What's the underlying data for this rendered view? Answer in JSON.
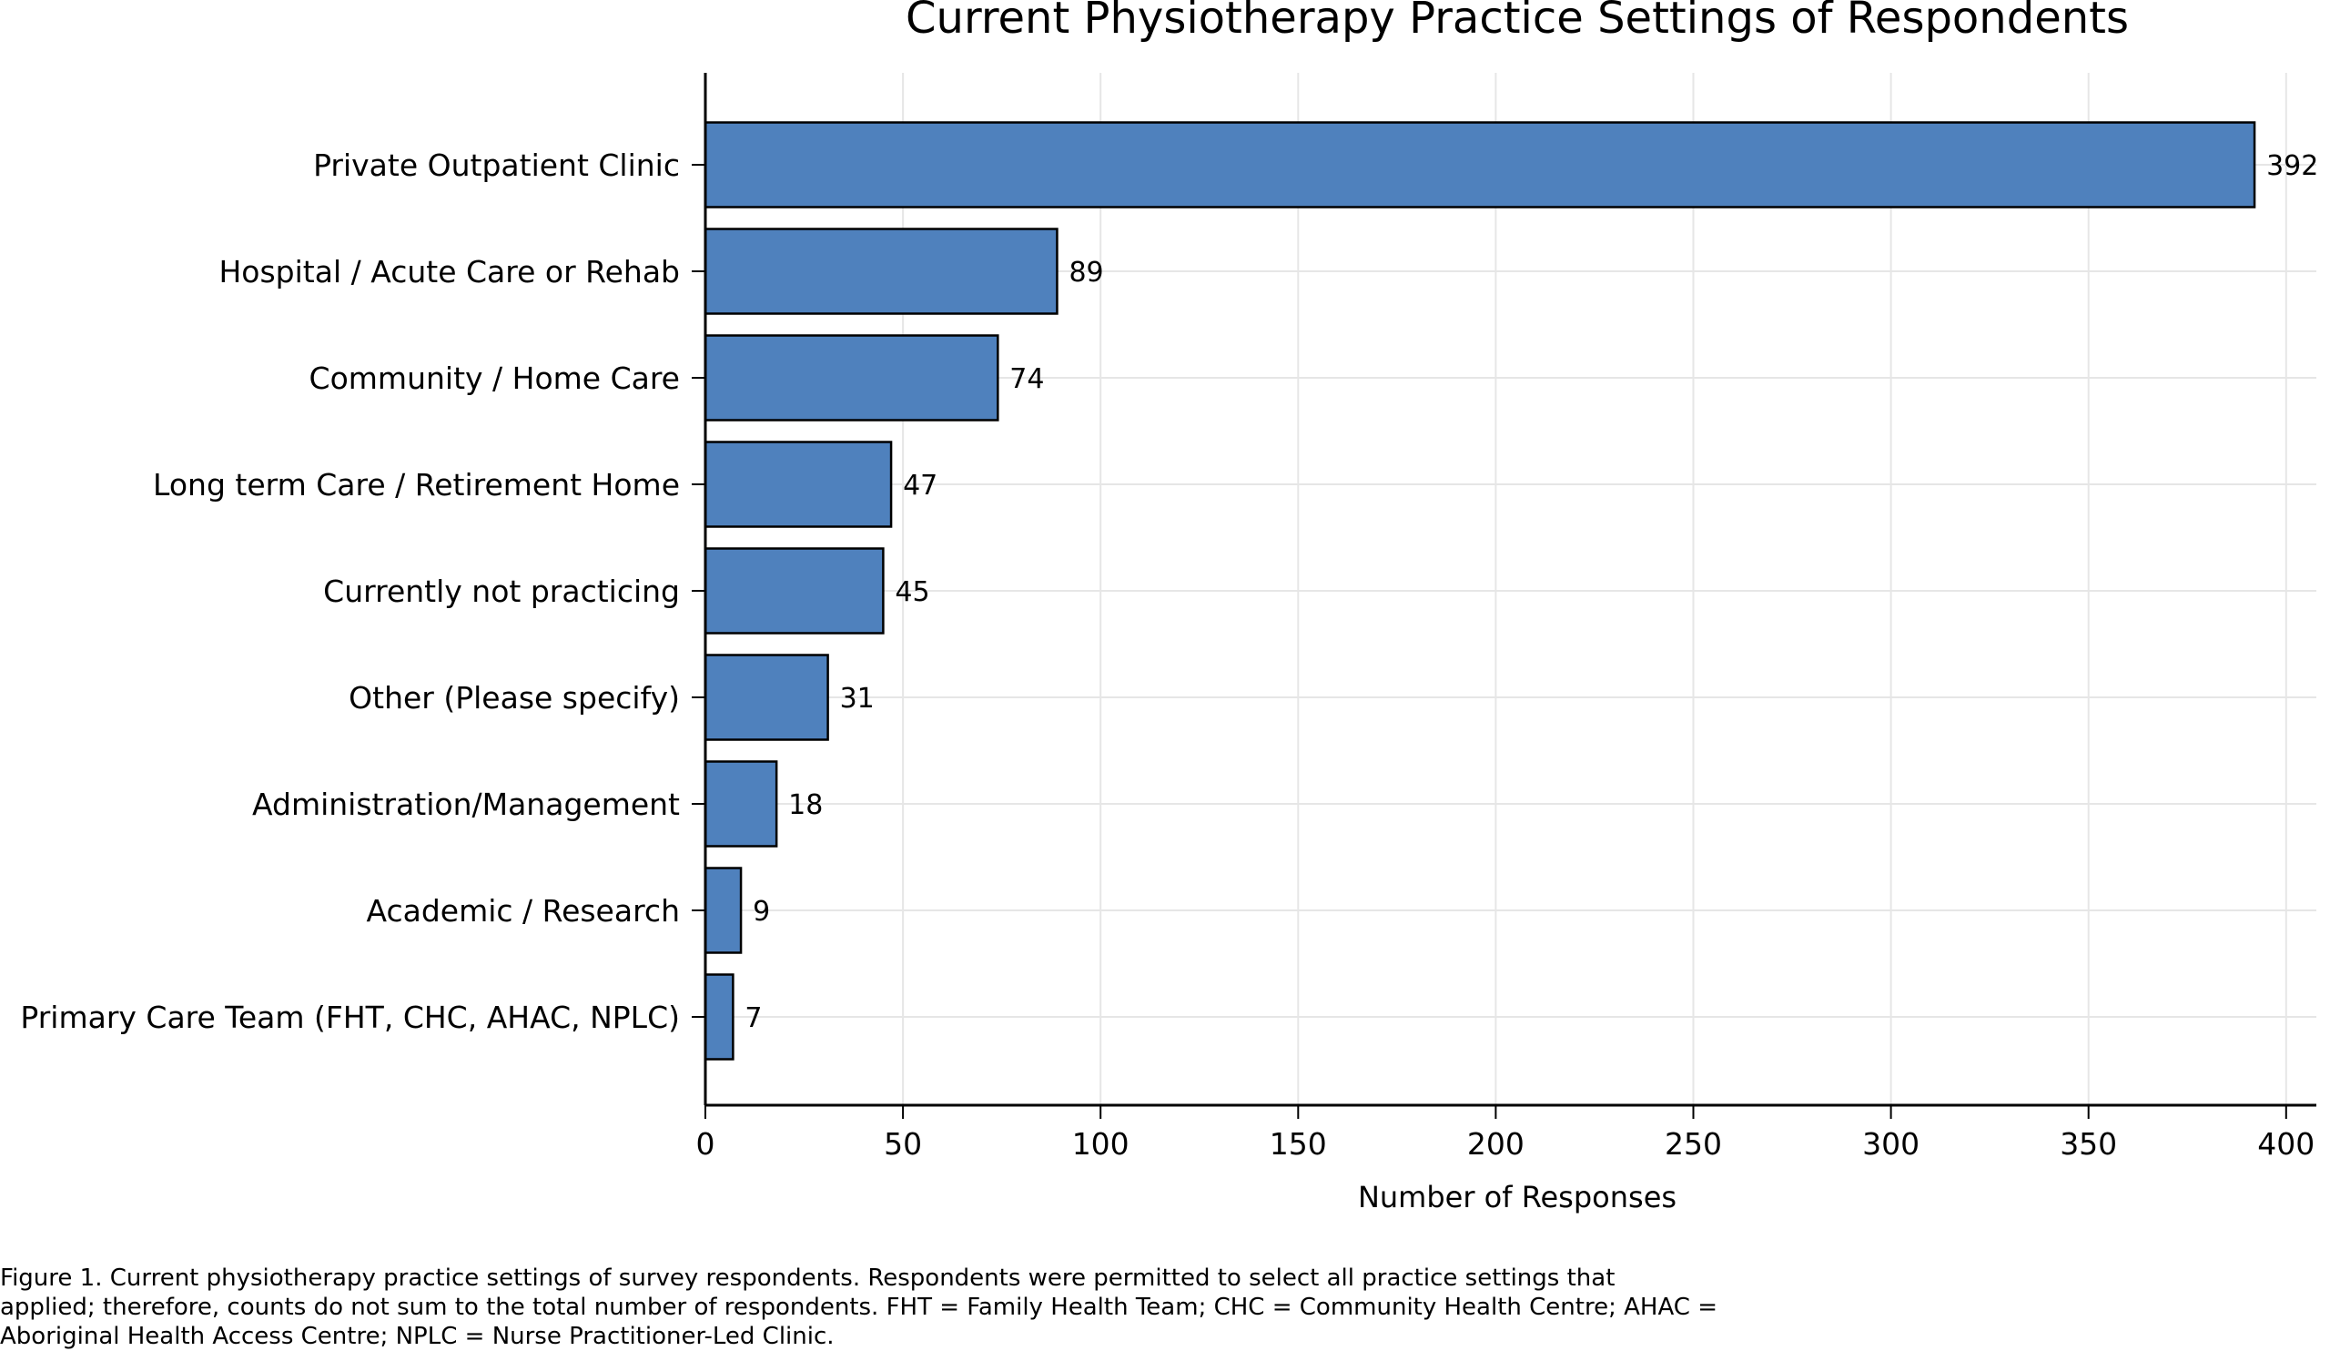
{
  "chart_data": {
    "type": "bar",
    "orientation": "horizontal",
    "title": "Current Physiotherapy Practice Settings of Respondents",
    "xlabel": "Number of Responses",
    "ylabel": "",
    "xlim": [
      0,
      410
    ],
    "xticks": [
      0,
      50,
      100,
      150,
      200,
      250,
      300,
      350,
      400
    ],
    "grid": true,
    "bar_color": "#4f81bd",
    "categories": [
      "Private Outpatient Clinic",
      "Hospital / Acute Care or Rehab",
      "Community / Home Care",
      "Long term Care / Retirement Home",
      "Currently not practicing",
      "Other (Please specify)",
      "Administration/Management",
      "Academic / Research",
      "Primary Care Team (FHT, CHC, AHAC, NPLC)"
    ],
    "values": [
      392,
      89,
      74,
      47,
      45,
      31,
      18,
      9,
      7
    ]
  },
  "caption": {
    "lines": [
      "Figure 1. Current physiotherapy practice settings of survey respondents. Respondents were permitted to select all practice settings that",
      "applied; therefore, counts do not sum to the total number of respondents. FHT = Family Health Team; CHC = Community Health Centre; AHAC =",
      "Aboriginal Health Access Centre; NPLC = Nurse Practitioner-Led Clinic."
    ]
  }
}
